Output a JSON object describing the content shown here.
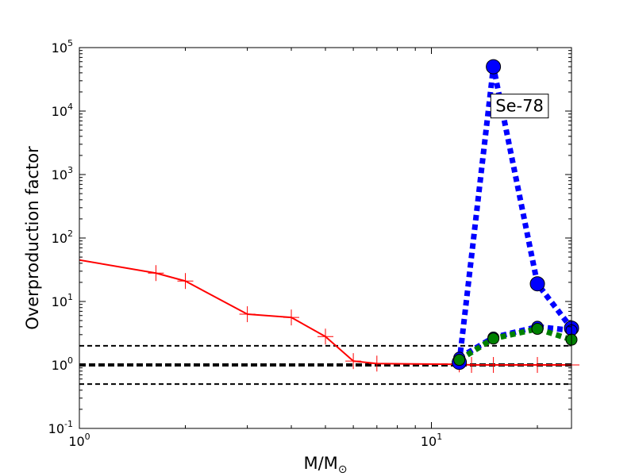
{
  "chart_data": {
    "type": "line",
    "title": "",
    "xlabel": "M/M",
    "xlabel_sub": "⊙",
    "ylabel": "Overproduction factor",
    "xscale": "log",
    "yscale": "log",
    "xlim": [
      1,
      25
    ],
    "ylim": [
      0.1,
      100000
    ],
    "grid": false,
    "x_ticks": [
      {
        "value": 1,
        "base": "10",
        "exp": "0"
      },
      {
        "value": 10,
        "base": "10",
        "exp": "1"
      }
    ],
    "y_ticks": [
      {
        "value": 0.1,
        "base": "10",
        "exp": "-1"
      },
      {
        "value": 1,
        "base": "10",
        "exp": "0"
      },
      {
        "value": 10,
        "base": "10",
        "exp": "1"
      },
      {
        "value": 100,
        "base": "10",
        "exp": "2"
      },
      {
        "value": 1000,
        "base": "10",
        "exp": "3"
      },
      {
        "value": 10000,
        "base": "10",
        "exp": "4"
      },
      {
        "value": 100000,
        "base": "10",
        "exp": "5"
      }
    ],
    "hlines": [
      {
        "y": 2,
        "style": "dashed",
        "width": 2,
        "color": "#000000"
      },
      {
        "y": 1,
        "style": "dashed",
        "width": 4,
        "color": "#000000"
      },
      {
        "y": 0.5,
        "style": "dashed",
        "width": 2,
        "color": "#000000"
      }
    ],
    "series": [
      {
        "color": "#ff0000",
        "style": "solid",
        "marker": "plus",
        "markers_at_points": [
          false,
          true,
          true,
          true,
          true,
          true,
          true,
          true,
          true,
          true,
          true,
          true,
          true
        ],
        "x": [
          1,
          1.65,
          2,
          3,
          4,
          5,
          6,
          7,
          12,
          13,
          15,
          20,
          25
        ],
        "y": [
          45,
          28,
          21,
          6.3,
          5.6,
          2.8,
          1.15,
          1.05,
          1.02,
          1.0,
          1.0,
          1.0,
          1.0
        ]
      },
      {
        "color": "#0000ff",
        "style": "dotted",
        "marker": "circle",
        "marker_face": "#0000ff",
        "x": [
          12,
          15,
          20,
          25
        ],
        "y": [
          1.1,
          50000,
          19,
          3.8
        ]
      },
      {
        "color": "#0000ff",
        "style": "dotted",
        "marker": "circle",
        "marker_face": "#0000ff",
        "x": [
          12,
          15,
          20,
          25
        ],
        "y": [
          1.3,
          2.7,
          4.0,
          3.5
        ]
      },
      {
        "color": "#008000",
        "style": "dotted",
        "marker": "circle",
        "marker_face": "#008000",
        "x": [
          12,
          15,
          20,
          25
        ],
        "y": [
          1.2,
          2.6,
          3.7,
          2.5
        ]
      }
    ],
    "annotation": {
      "text": "Se-78",
      "x": 17.8,
      "y": 12000
    }
  }
}
